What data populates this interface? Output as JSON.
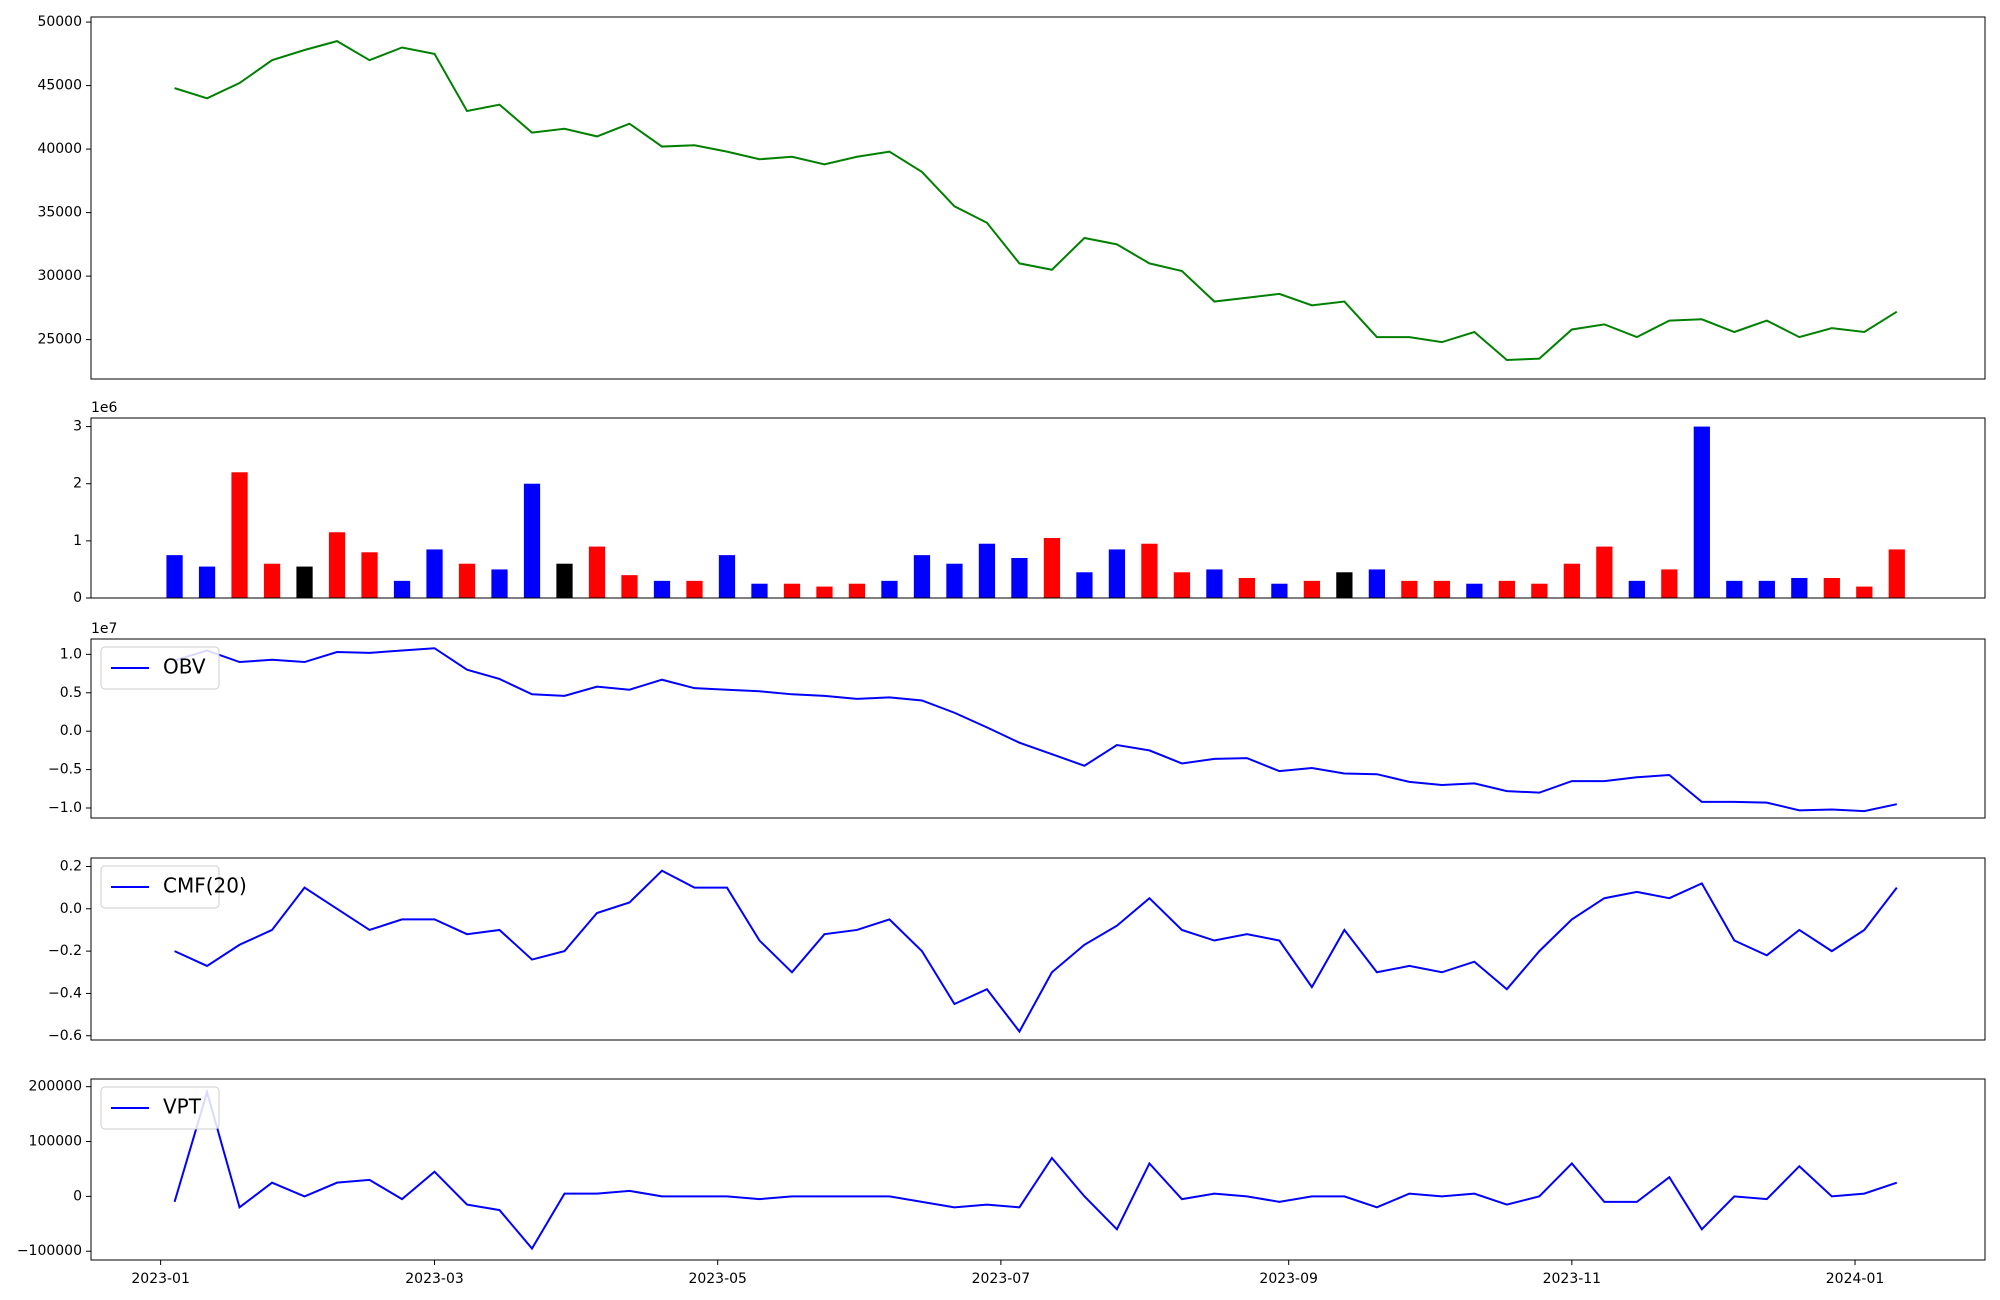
{
  "chart_data": [
    {
      "type": "line",
      "x": [
        19361,
        19368,
        19375,
        19382,
        19389,
        19396,
        19403,
        19410,
        19417,
        19424,
        19431,
        19438,
        19445,
        19452,
        19459,
        19466,
        19473,
        19480,
        19487,
        19494,
        19501,
        19508,
        19515,
        19522,
        19529,
        19536,
        19543,
        19550,
        19557,
        19564,
        19571,
        19578,
        19585,
        19592,
        19599,
        19606,
        19613,
        19620,
        19627,
        19634,
        19641,
        19648,
        19655,
        19662,
        19669,
        19676,
        19683,
        19690,
        19697,
        19704,
        19711,
        19718,
        19725,
        19732
      ],
      "series": [
        {
          "color": "green",
          "values": [
            44800,
            44000,
            45200,
            47000,
            47800,
            48500,
            47000,
            48000,
            47500,
            43000,
            43500,
            41300,
            41600,
            41000,
            42000,
            40200,
            40300,
            39800,
            39200,
            39400,
            38800,
            39400,
            39800,
            38200,
            35500,
            34200,
            31000,
            30500,
            33000,
            32500,
            31000,
            30400,
            28000,
            28300,
            28600,
            27700,
            28000,
            25200,
            25200,
            24800,
            25600,
            23400,
            23500,
            25800,
            26200,
            25200,
            26500,
            26600,
            25600,
            26500,
            25200,
            25900,
            25600,
            27200
          ]
        }
      ],
      "xlim": [
        19343,
        19751
      ],
      "ylim": [
        21900,
        50400
      ],
      "yticks": [
        25000,
        30000,
        35000,
        40000,
        45000,
        50000
      ]
    },
    {
      "type": "bar",
      "x": [
        19361,
        19368,
        19375,
        19382,
        19389,
        19396,
        19403,
        19410,
        19417,
        19424,
        19431,
        19438,
        19445,
        19452,
        19459,
        19466,
        19473,
        19480,
        19487,
        19494,
        19501,
        19508,
        19515,
        19522,
        19529,
        19536,
        19543,
        19550,
        19557,
        19564,
        19571,
        19578,
        19585,
        19592,
        19599,
        19606,
        19613,
        19620,
        19627,
        19634,
        19641,
        19648,
        19655,
        19662,
        19669,
        19676,
        19683,
        19690,
        19697,
        19704,
        19711,
        19718,
        19725,
        19732
      ],
      "values": [
        750000,
        550000,
        2200000,
        600000,
        550000,
        1150000,
        800000,
        300000,
        850000,
        600000,
        500000,
        2000000,
        600000,
        900000,
        400000,
        300000,
        300000,
        750000,
        250000,
        250000,
        200000,
        250000,
        300000,
        750000,
        600000,
        950000,
        700000,
        1050000,
        450000,
        850000,
        950000,
        450000,
        500000,
        350000,
        250000,
        300000,
        450000,
        500000,
        300000,
        300000,
        250000,
        300000,
        250000,
        600000,
        900000,
        300000,
        500000,
        3000000,
        300000,
        300000,
        350000,
        350000,
        200000,
        850000
      ],
      "colors": [
        "blue",
        "blue",
        "red",
        "red",
        "black",
        "red",
        "red",
        "blue",
        "blue",
        "red",
        "blue",
        "blue",
        "black",
        "red",
        "red",
        "blue",
        "red",
        "blue",
        "blue",
        "red",
        "red",
        "red",
        "blue",
        "blue",
        "blue",
        "blue",
        "blue",
        "red",
        "blue",
        "blue",
        "red",
        "red",
        "blue",
        "red",
        "blue",
        "red",
        "black",
        "blue",
        "red",
        "red",
        "blue",
        "red",
        "red",
        "red",
        "red",
        "blue",
        "red",
        "blue",
        "blue",
        "blue",
        "blue",
        "red",
        "red",
        "red"
      ],
      "xlim": [
        19343,
        19751
      ],
      "ylim": [
        0,
        3150000
      ],
      "y_offset_label": "1e6",
      "yticks": [
        {
          "value": 0,
          "label": "0"
        },
        {
          "value": 1000000,
          "label": "1"
        },
        {
          "value": 2000000,
          "label": "2"
        },
        {
          "value": 3000000,
          "label": "3"
        }
      ]
    },
    {
      "type": "line",
      "x": [
        19361,
        19368,
        19375,
        19382,
        19389,
        19396,
        19403,
        19410,
        19417,
        19424,
        19431,
        19438,
        19445,
        19452,
        19459,
        19466,
        19473,
        19480,
        19487,
        19494,
        19501,
        19508,
        19515,
        19522,
        19529,
        19536,
        19543,
        19550,
        19557,
        19564,
        19571,
        19578,
        19585,
        19592,
        19599,
        19606,
        19613,
        19620,
        19627,
        19634,
        19641,
        19648,
        19655,
        19662,
        19669,
        19676,
        19683,
        19690,
        19697,
        19704,
        19711,
        19718,
        19725,
        19732
      ],
      "series": [
        {
          "name": "OBV",
          "color": "blue",
          "values": [
            9200000,
            10500000,
            9000000,
            9300000,
            9000000,
            10300000,
            10200000,
            10500000,
            10800000,
            8000000,
            6800000,
            4800000,
            4600000,
            5800000,
            5400000,
            6700000,
            5600000,
            5400000,
            5200000,
            4800000,
            4600000,
            4200000,
            4400000,
            4000000,
            2400000,
            500000,
            -1500000,
            -3000000,
            -4500000,
            -1800000,
            -2500000,
            -4200000,
            -3600000,
            -3500000,
            -5200000,
            -4800000,
            -5500000,
            -5600000,
            -6600000,
            -7000000,
            -6800000,
            -7800000,
            -8000000,
            -6500000,
            -6500000,
            -6000000,
            -5700000,
            -9200000,
            -9200000,
            -9300000,
            -10300000,
            -10200000,
            -10400000,
            -9500000
          ]
        }
      ],
      "xlim": [
        19343,
        19751
      ],
      "ylim": [
        -11300000,
        12000000
      ],
      "y_offset_label": "1e7",
      "legend": "upper left",
      "yticks": [
        {
          "value": -10000000,
          "label": "−1.0"
        },
        {
          "value": -5000000,
          "label": "−0.5"
        },
        {
          "value": 0,
          "label": "0.0"
        },
        {
          "value": 5000000,
          "label": "0.5"
        },
        {
          "value": 10000000,
          "label": "1.0"
        }
      ]
    },
    {
      "type": "line",
      "x": [
        19361,
        19368,
        19375,
        19382,
        19389,
        19396,
        19403,
        19410,
        19417,
        19424,
        19431,
        19438,
        19445,
        19452,
        19459,
        19466,
        19473,
        19480,
        19487,
        19494,
        19501,
        19508,
        19515,
        19522,
        19529,
        19536,
        19543,
        19550,
        19557,
        19564,
        19571,
        19578,
        19585,
        19592,
        19599,
        19606,
        19613,
        19620,
        19627,
        19634,
        19641,
        19648,
        19655,
        19662,
        19669,
        19676,
        19683,
        19690,
        19697,
        19704,
        19711,
        19718,
        19725,
        19732
      ],
      "series": [
        {
          "name": "CMF(20)",
          "color": "blue",
          "values": [
            -0.2,
            -0.27,
            -0.17,
            -0.1,
            0.1,
            0.0,
            -0.1,
            -0.05,
            -0.05,
            -0.12,
            -0.1,
            -0.24,
            -0.2,
            -0.02,
            0.03,
            0.18,
            0.1,
            0.1,
            -0.15,
            -0.3,
            -0.12,
            -0.1,
            -0.05,
            -0.2,
            -0.45,
            -0.38,
            -0.58,
            -0.3,
            -0.17,
            -0.08,
            0.05,
            -0.1,
            -0.15,
            -0.12,
            -0.15,
            -0.37,
            -0.1,
            -0.3,
            -0.27,
            -0.3,
            -0.25,
            -0.38,
            -0.2,
            -0.05,
            0.05,
            0.08,
            0.05,
            0.12,
            -0.15,
            -0.22,
            -0.1,
            -0.2,
            -0.1,
            0.1
          ]
        }
      ],
      "xlim": [
        19343,
        19751
      ],
      "ylim": [
        -0.62,
        0.24
      ],
      "legend": "upper left",
      "yticks": [
        {
          "value": -0.6,
          "label": "−0.6"
        },
        {
          "value": -0.4,
          "label": "−0.4"
        },
        {
          "value": -0.2,
          "label": "−0.2"
        },
        {
          "value": 0,
          "label": "0.0"
        },
        {
          "value": 0.2,
          "label": "0.2"
        }
      ]
    },
    {
      "type": "line",
      "x": [
        19361,
        19368,
        19375,
        19382,
        19389,
        19396,
        19403,
        19410,
        19417,
        19424,
        19431,
        19438,
        19445,
        19452,
        19459,
        19466,
        19473,
        19480,
        19487,
        19494,
        19501,
        19508,
        19515,
        19522,
        19529,
        19536,
        19543,
        19550,
        19557,
        19564,
        19571,
        19578,
        19585,
        19592,
        19599,
        19606,
        19613,
        19620,
        19627,
        19634,
        19641,
        19648,
        19655,
        19662,
        19669,
        19676,
        19683,
        19690,
        19697,
        19704,
        19711,
        19718,
        19725,
        19732
      ],
      "series": [
        {
          "name": "VPT",
          "color": "blue",
          "values": [
            -10000,
            190000,
            -20000,
            25000,
            0,
            25000,
            30000,
            -5000,
            45000,
            -15000,
            -25000,
            -95000,
            5000,
            5000,
            10000,
            0,
            0,
            0,
            -5000,
            0,
            0,
            0,
            0,
            -10000,
            -20000,
            -15000,
            -20000,
            70000,
            0,
            -60000,
            60000,
            -5000,
            5000,
            0,
            -10000,
            0,
            0,
            -20000,
            5000,
            0,
            5000,
            -15000,
            0,
            60000,
            -10000,
            -10000,
            35000,
            -60000,
            0,
            -5000,
            55000,
            0,
            5000,
            25000
          ]
        }
      ],
      "xlim": [
        19343,
        19751
      ],
      "ylim": [
        -116000,
        214000
      ],
      "legend": "upper left",
      "yticks": [
        {
          "value": -100000,
          "label": "−100000"
        },
        {
          "value": 0,
          "label": "0"
        },
        {
          "value": 100000,
          "label": "100000"
        },
        {
          "value": 200000,
          "label": "200000"
        }
      ],
      "xticks": [
        {
          "value": 19358,
          "label": "2023-01"
        },
        {
          "value": 19417,
          "label": "2023-03"
        },
        {
          "value": 19478,
          "label": "2023-05"
        },
        {
          "value": 19539,
          "label": "2023-07"
        },
        {
          "value": 19601,
          "label": "2023-09"
        },
        {
          "value": 19662,
          "label": "2023-11"
        },
        {
          "value": 19723,
          "label": "2024-01"
        }
      ]
    }
  ]
}
